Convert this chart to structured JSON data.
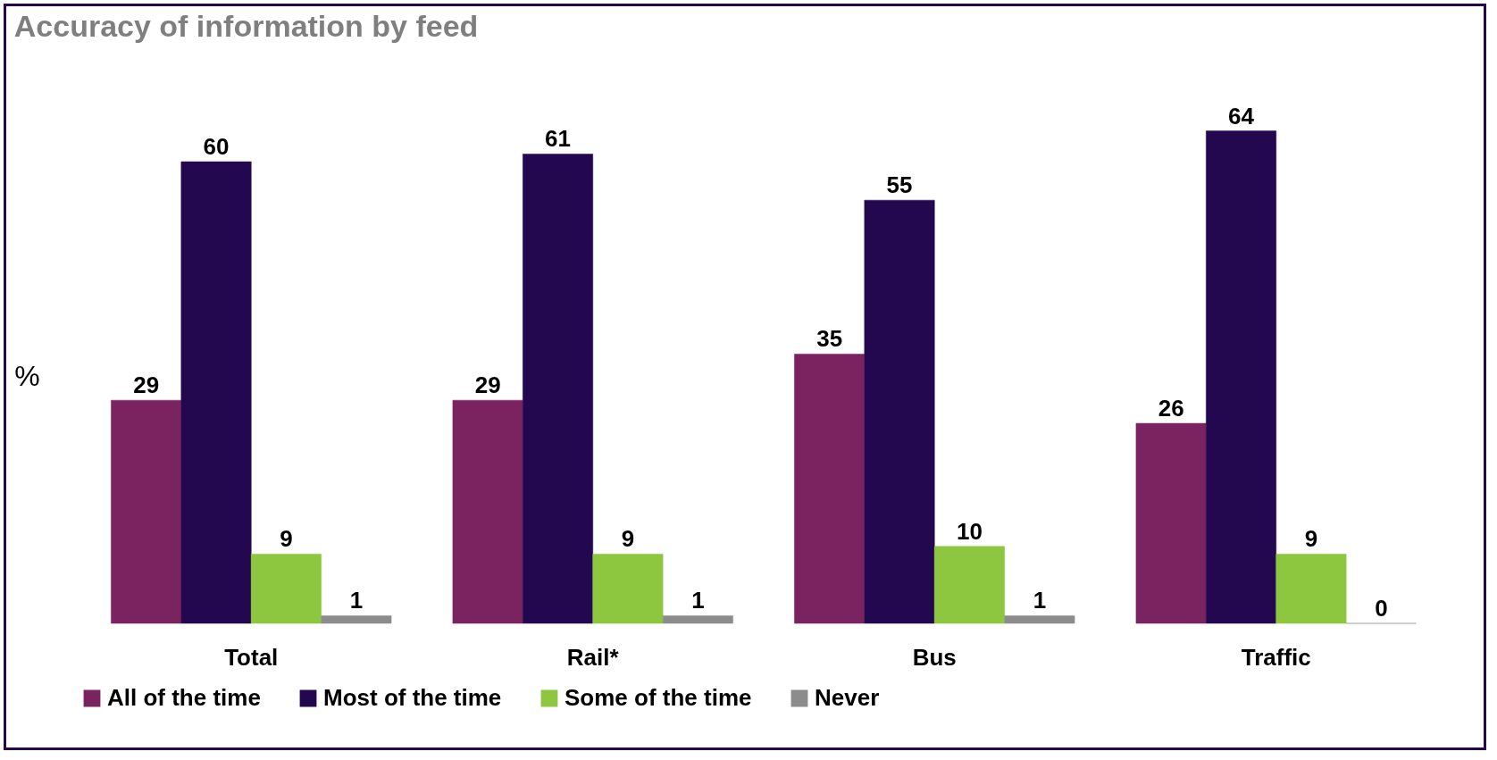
{
  "chart_data": {
    "type": "bar",
    "title": "Accuracy of information by feed",
    "ylabel": "%",
    "categories": [
      "Total",
      "Rail*",
      "Bus",
      "Traffic"
    ],
    "series": [
      {
        "name": "All of the time",
        "color": "#7b2360",
        "values": [
          29,
          29,
          35,
          26
        ]
      },
      {
        "name": "Most of the time",
        "color": "#24084f",
        "values": [
          60,
          61,
          55,
          64
        ]
      },
      {
        "name": "Some of the time",
        "color": "#8dc63f",
        "values": [
          9,
          9,
          10,
          9
        ]
      },
      {
        "name": "Never",
        "color": "#8c8c8c",
        "values": [
          1,
          1,
          1,
          0
        ]
      }
    ],
    "data_labels": true,
    "legend": "bottom",
    "grid": false
  }
}
